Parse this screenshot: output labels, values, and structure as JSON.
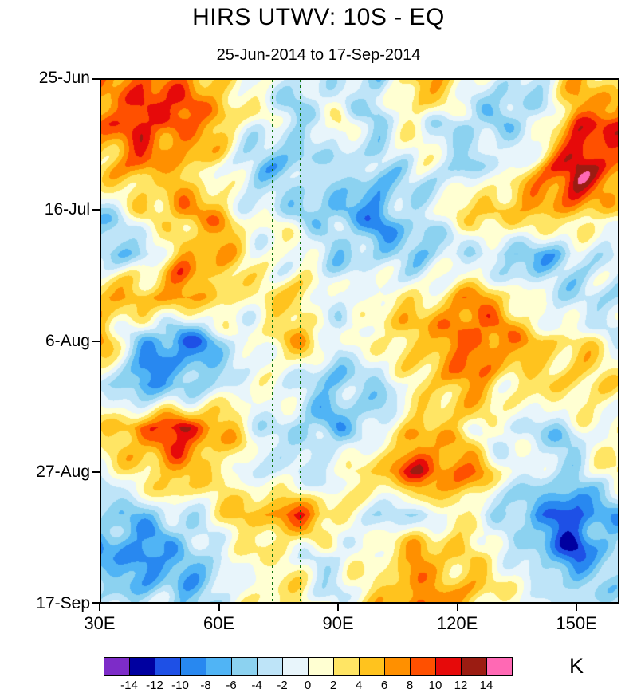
{
  "chart_data": {
    "type": "heatmap",
    "title": "HIRS UTWV: 10S - EQ",
    "subtitle": "25-Jun-2014 to 17-Sep-2014",
    "units": "K",
    "x_axis": {
      "range": [
        30,
        160
      ],
      "ticks": [
        30,
        60,
        90,
        120,
        150
      ],
      "tick_labels": [
        "30E",
        "60E",
        "90E",
        "120E",
        "150E"
      ]
    },
    "y_axis": {
      "range_days": [
        0,
        84
      ],
      "tick_days": [
        0,
        21,
        42,
        63,
        84
      ],
      "tick_labels": [
        "25-Jun",
        "16-Jul",
        "6-Aug",
        "27-Aug",
        "17-Sep"
      ],
      "orientation": "time-increases-downward"
    },
    "levels": [
      -14,
      -12,
      -10,
      -8,
      -6,
      -4,
      -2,
      0,
      2,
      4,
      6,
      8,
      10,
      12,
      14
    ],
    "colors": [
      "#7d2cc8",
      "#0000a0",
      "#1e50e6",
      "#2888f0",
      "#50b4f5",
      "#8cd2f0",
      "#bee4f8",
      "#e8f5fb",
      "#ffffd2",
      "#ffe564",
      "#ffc31e",
      "#ff9000",
      "#ff5000",
      "#e60a0a",
      "#9b1c12",
      "#ff69b4"
    ],
    "reference_lines": {
      "style": "dashed",
      "color": "#0d730d",
      "x_values": [
        73,
        80
      ]
    },
    "grid": {
      "lons": [
        30,
        40,
        50,
        60,
        70,
        80,
        90,
        100,
        110,
        120,
        130,
        140,
        150,
        160
      ],
      "days": [
        0,
        7,
        14,
        21,
        28,
        35,
        42,
        49,
        56,
        63,
        70,
        77,
        84
      ],
      "values": [
        [
          6,
          9,
          7,
          4,
          1,
          -3,
          0,
          -6,
          7,
          2,
          -4,
          -2,
          4,
          2
        ],
        [
          7,
          12,
          10,
          5,
          -1,
          -4,
          2,
          -3,
          2,
          -5,
          -6,
          -3,
          9,
          11
        ],
        [
          3,
          7,
          4,
          2,
          -4,
          -5,
          -2,
          -6,
          -1,
          -3,
          -2,
          5,
          13,
          7
        ],
        [
          -4,
          3,
          6,
          4,
          -2,
          -3,
          -5,
          -8,
          -3,
          2,
          4,
          7,
          6,
          3
        ],
        [
          -6,
          -4,
          5,
          7,
          2,
          -1,
          -3,
          -5,
          -6,
          -2,
          -5,
          -7,
          -4,
          -2
        ],
        [
          4,
          7,
          8,
          4,
          2,
          3,
          -2,
          2,
          3,
          6,
          4,
          -2,
          -5,
          -3
        ],
        [
          5,
          -4,
          -9,
          -5,
          1,
          4,
          -2,
          3,
          5,
          9,
          7,
          4,
          2,
          0
        ],
        [
          -3,
          -9,
          -7,
          -2,
          1,
          -3,
          -6,
          -4,
          3,
          7,
          4,
          2,
          3,
          2
        ],
        [
          2,
          9,
          13,
          6,
          -1,
          -5,
          -6,
          -2,
          5,
          3,
          -2,
          -4,
          -2,
          2
        ],
        [
          -2,
          4,
          7,
          3,
          -2,
          -4,
          -1,
          6,
          12,
          9,
          2,
          -3,
          -5,
          3
        ],
        [
          -6,
          -4,
          -2,
          2,
          5,
          8,
          2,
          -3,
          -2,
          2,
          -4,
          -9,
          -12,
          -5
        ],
        [
          -8,
          -10,
          -6,
          -2,
          2,
          -2,
          -4,
          3,
          7,
          5,
          2,
          -6,
          -10,
          -4
        ],
        [
          -3,
          -2,
          -6,
          -3,
          1,
          3,
          -2,
          5,
          9,
          5,
          2,
          -1,
          -4,
          -2
        ]
      ]
    }
  }
}
